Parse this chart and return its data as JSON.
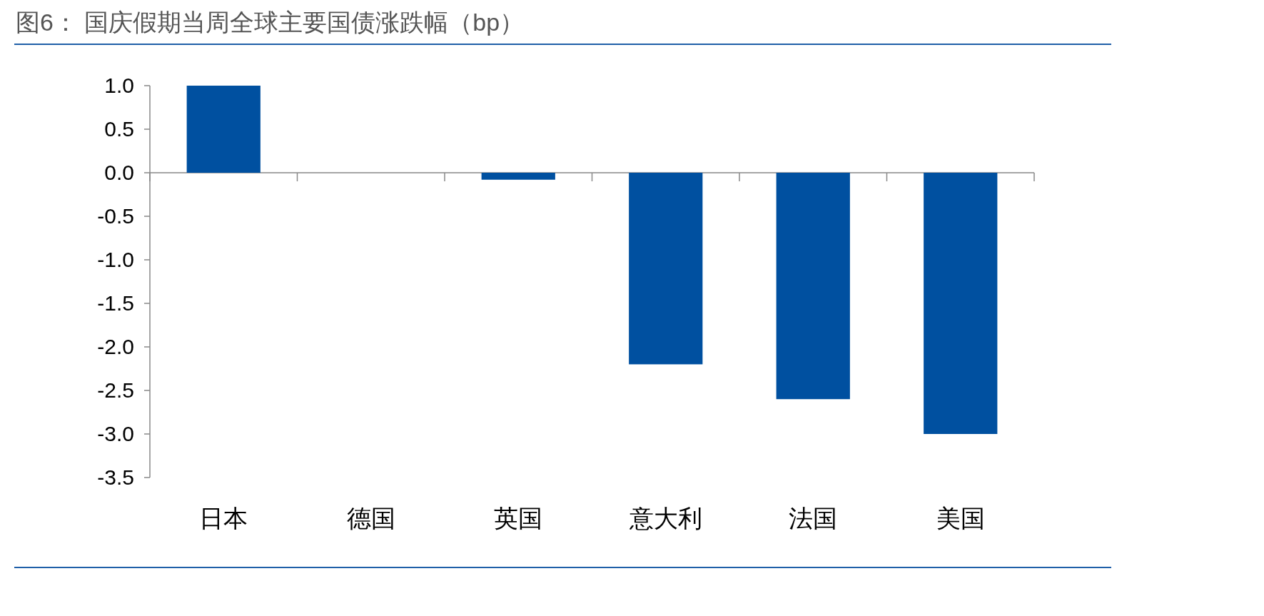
{
  "chart_data": {
    "type": "bar",
    "title": "图6： 国庆假期当周全球主要国债涨跌幅（bp）",
    "categories": [
      "日本",
      "德国",
      "英国",
      "意大利",
      "法国",
      "美国"
    ],
    "values": [
      1.0,
      0.0,
      -0.08,
      -2.2,
      -2.6,
      -3.0
    ],
    "color": "#0050a0",
    "ylim": [
      -3.5,
      1.0
    ],
    "yticks": [
      {
        "value": 1.0,
        "label": "1.0"
      },
      {
        "value": 0.5,
        "label": "0.5"
      },
      {
        "value": 0.0,
        "label": "0.0"
      },
      {
        "value": -0.5,
        "label": "-0.5"
      },
      {
        "value": -1.0,
        "label": "-1.0"
      },
      {
        "value": -1.5,
        "label": "-1.5"
      },
      {
        "value": -2.0,
        "label": "-2.0"
      },
      {
        "value": -2.5,
        "label": "-2.5"
      },
      {
        "value": -3.0,
        "label": "-3.0"
      },
      {
        "value": -3.5,
        "label": "-3.5"
      }
    ]
  }
}
